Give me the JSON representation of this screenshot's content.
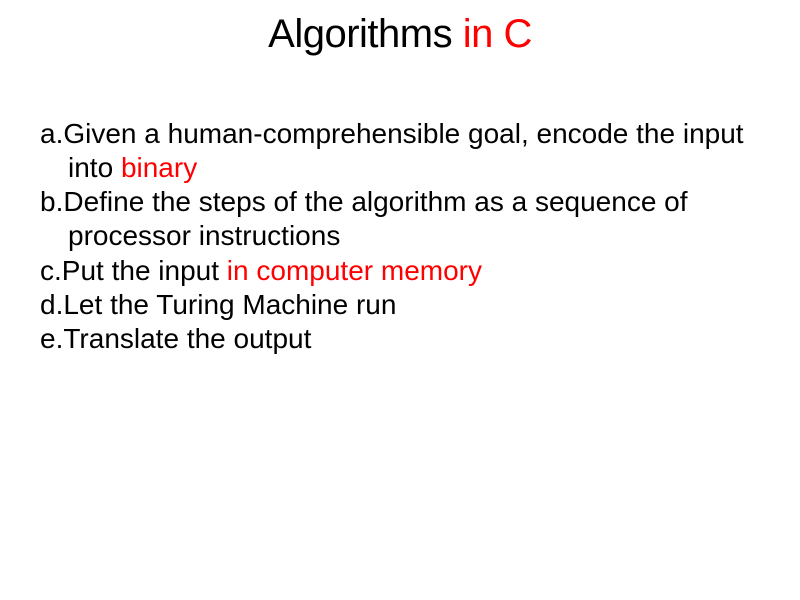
{
  "title": {
    "part1": "Algorithms",
    "part2": " in C",
    "part1_color": "#000000",
    "part2_color": "#ff0000",
    "fontsize": 40
  },
  "body": {
    "fontsize": 28,
    "text_color": "#000000",
    "accent_color": "#ff0000",
    "items": [
      {
        "label": "a.",
        "pre": "Given a human-comprehensible goal, encode the input into ",
        "accent": "binary",
        "post": ""
      },
      {
        "label": "b.",
        "pre": "Define the steps of the algorithm as a sequence of processor instructions",
        "accent": "",
        "post": ""
      },
      {
        "label": "c.",
        "pre": "Put the input ",
        "accent": "in computer memory",
        "post": ""
      },
      {
        "label": "d.",
        "pre": "Let the Turing Machine run",
        "accent": "",
        "post": ""
      },
      {
        "label": "e.",
        "pre": "Translate the output",
        "accent": "",
        "post": ""
      }
    ]
  },
  "background_color": "#ffffff"
}
